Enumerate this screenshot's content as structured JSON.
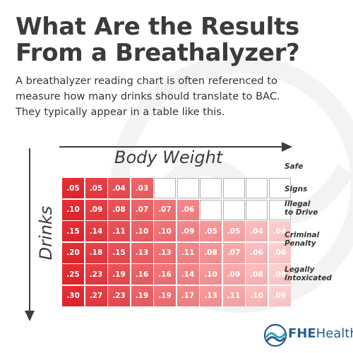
{
  "title_lines": [
    "What Are the Results",
    "From a Breathalyzer?"
  ],
  "subtitle_lines": [
    "A breathalyzer reading chart is often referenced to",
    "measure how many drinks should translate to BAC.",
    "They typically appear in a table like this."
  ],
  "colors": {
    "red_dark": "#d8232a",
    "red_light": "#f5c1c1",
    "text": "#3b3b3b",
    "logo_blue": "#2a5d8c",
    "logo_teal": "#2aa6b3"
  },
  "chart_data": {
    "type": "table",
    "xlabel": "Body Weight",
    "ylabel": "Drinks",
    "rows": [
      [
        ".05",
        ".05",
        ".04",
        ".03",
        "",
        "",
        "",
        "",
        "",
        ""
      ],
      [
        ".10",
        ".09",
        ".08",
        ".07",
        ".07",
        ".06",
        "",
        "",
        "",
        ""
      ],
      [
        ".15",
        ".14",
        ".11",
        ".10",
        ".10",
        ".09",
        ".05",
        ".05",
        ".04",
        ".04"
      ],
      [
        ".20",
        ".18",
        ".15",
        ".13",
        ".13",
        ".11",
        ".08",
        ".07",
        ".06",
        ".06"
      ],
      [
        ".25",
        ".23",
        ".19",
        ".16",
        ".16",
        ".14",
        ".10",
        ".09",
        ".08",
        ".08"
      ],
      [
        ".30",
        ".27",
        ".23",
        ".19",
        ".19",
        ".17",
        ".13",
        ".11",
        ".10",
        ".09"
      ]
    ],
    "legend": [
      {
        "lines": [
          "Safe"
        ]
      },
      {
        "lines": [
          "Signs"
        ]
      },
      {
        "lines": [
          "Illegal",
          "to Drive"
        ]
      },
      {
        "lines": [
          "Criminal",
          "Penalty"
        ]
      },
      {
        "lines": [
          "Legally",
          "Intoxicated"
        ]
      }
    ]
  },
  "logo": {
    "icon": "fhe-wave-logo-icon",
    "text_bold": "FHE",
    "text_regular": "Health"
  }
}
